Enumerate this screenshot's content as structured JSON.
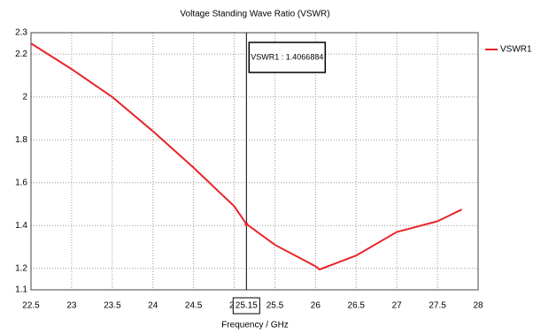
{
  "chart_data": {
    "type": "line",
    "title": "Voltage Standing Wave Ratio (VSWR)",
    "x_label": "Frequency / GHz",
    "x": [
      22.5,
      23,
      23.5,
      24,
      24.5,
      25,
      25.15,
      25.5,
      26,
      26.05,
      26.5,
      27,
      27.5,
      27.8
    ],
    "series": [
      {
        "name": "VSWR1",
        "color": "#e8242a",
        "values": [
          2.25,
          2.13,
          2.0,
          1.84,
          1.67,
          1.49,
          1.407,
          1.31,
          1.21,
          1.195,
          1.26,
          1.37,
          1.42,
          1.475
        ]
      }
    ],
    "xlim": [
      22.5,
      28
    ],
    "xticks": [
      22.5,
      23,
      23.5,
      24,
      24.5,
      25,
      25.5,
      26,
      26.5,
      27,
      27.5,
      28
    ],
    "ylim": [
      1.1,
      2.3
    ],
    "yticks": [
      1.1,
      1.2,
      1.4,
      1.6,
      1.8,
      2,
      2.2,
      2.3
    ],
    "grid": true,
    "legend": "right",
    "marker": {
      "x": 25.15,
      "value": 1.4066884,
      "label": "VSWR1 : 1.4066884"
    }
  }
}
